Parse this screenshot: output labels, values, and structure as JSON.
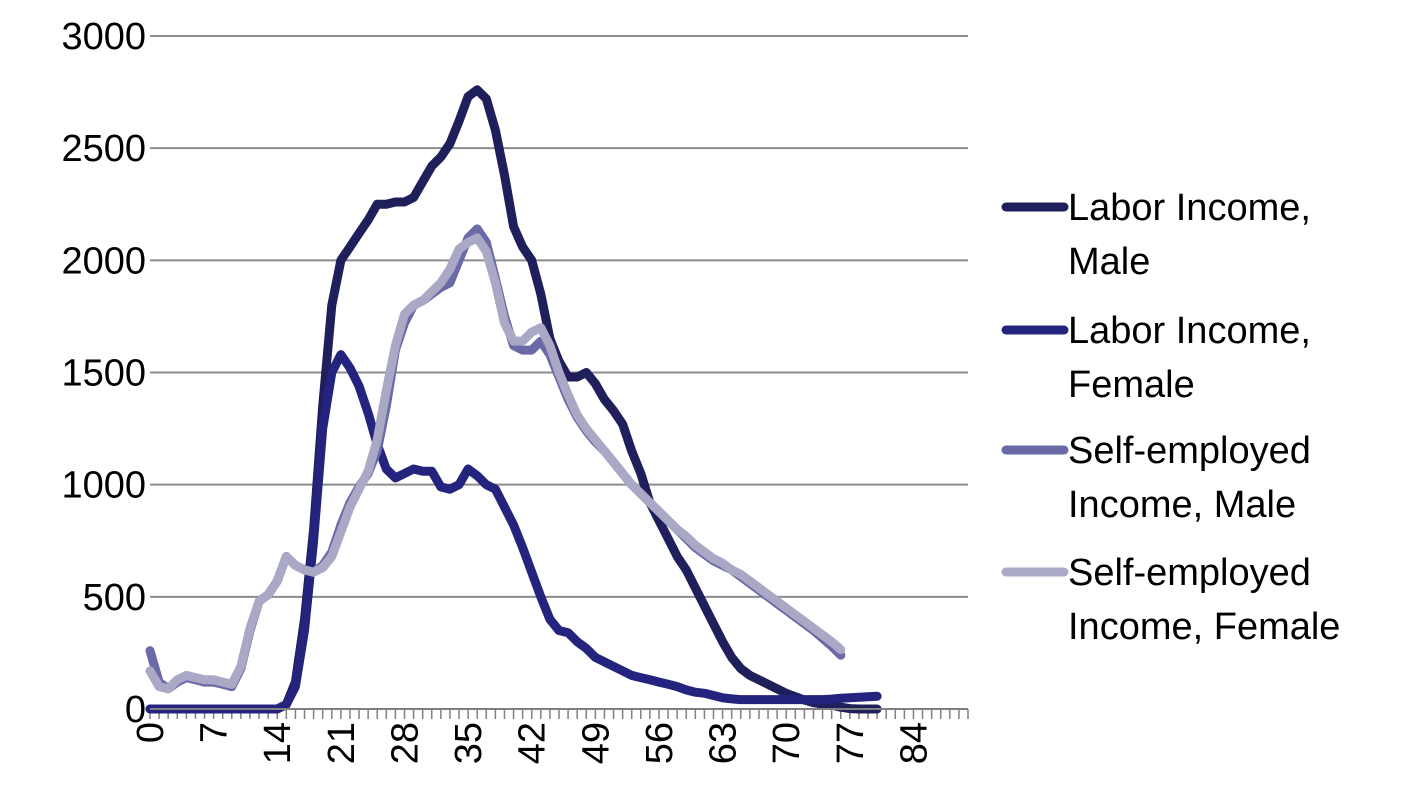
{
  "chart_data": {
    "type": "line",
    "title": "",
    "xlabel": "",
    "ylabel": "",
    "xlim": [
      0,
      90
    ],
    "ylim": [
      0,
      3000
    ],
    "y_ticks": [
      0,
      500,
      1000,
      1500,
      2000,
      2500,
      3000
    ],
    "x_ticks": [
      0,
      7,
      14,
      21,
      28,
      35,
      42,
      49,
      56,
      63,
      70,
      77,
      84
    ],
    "grid": "horizontal",
    "legend_position": "right",
    "series": [
      {
        "name": "Labor Income, Male",
        "color": "#1f1f5c",
        "points": [
          [
            0,
            0
          ],
          [
            13,
            0
          ],
          [
            14,
            0
          ],
          [
            15,
            20
          ],
          [
            16,
            120
          ],
          [
            17,
            400
          ],
          [
            18,
            800
          ],
          [
            19,
            1350
          ],
          [
            20,
            1800
          ],
          [
            21,
            2000
          ],
          [
            22,
            2060
          ],
          [
            23,
            2120
          ],
          [
            24,
            2180
          ],
          [
            25,
            2250
          ],
          [
            26,
            2250
          ],
          [
            27,
            2260
          ],
          [
            28,
            2260
          ],
          [
            29,
            2280
          ],
          [
            30,
            2350
          ],
          [
            31,
            2420
          ],
          [
            32,
            2460
          ],
          [
            33,
            2520
          ],
          [
            34,
            2620
          ],
          [
            35,
            2730
          ],
          [
            36,
            2760
          ],
          [
            37,
            2720
          ],
          [
            38,
            2580
          ],
          [
            39,
            2380
          ],
          [
            40,
            2150
          ],
          [
            41,
            2060
          ],
          [
            42,
            2000
          ],
          [
            43,
            1850
          ],
          [
            44,
            1650
          ],
          [
            45,
            1550
          ],
          [
            46,
            1480
          ],
          [
            47,
            1480
          ],
          [
            48,
            1500
          ],
          [
            49,
            1450
          ],
          [
            50,
            1380
          ],
          [
            51,
            1330
          ],
          [
            52,
            1270
          ],
          [
            53,
            1150
          ],
          [
            54,
            1050
          ],
          [
            55,
            920
          ],
          [
            56,
            840
          ],
          [
            57,
            760
          ],
          [
            58,
            680
          ],
          [
            59,
            620
          ],
          [
            60,
            540
          ],
          [
            61,
            460
          ],
          [
            62,
            380
          ],
          [
            63,
            300
          ],
          [
            64,
            230
          ],
          [
            65,
            180
          ],
          [
            66,
            150
          ],
          [
            67,
            130
          ],
          [
            68,
            110
          ],
          [
            69,
            90
          ],
          [
            70,
            70
          ],
          [
            71,
            55
          ],
          [
            72,
            40
          ],
          [
            73,
            28
          ],
          [
            74,
            22
          ],
          [
            75,
            18
          ],
          [
            76,
            8
          ],
          [
            77,
            2
          ],
          [
            78,
            0
          ],
          [
            79,
            0
          ],
          [
            80,
            0
          ]
        ]
      },
      {
        "name": "Labor Income, Female",
        "color": "#24247f",
        "points": [
          [
            0,
            0
          ],
          [
            13,
            0
          ],
          [
            14,
            0
          ],
          [
            15,
            20
          ],
          [
            16,
            100
          ],
          [
            17,
            350
          ],
          [
            18,
            750
          ],
          [
            19,
            1250
          ],
          [
            20,
            1500
          ],
          [
            21,
            1580
          ],
          [
            22,
            1520
          ],
          [
            23,
            1440
          ],
          [
            24,
            1320
          ],
          [
            25,
            1180
          ],
          [
            26,
            1070
          ],
          [
            27,
            1030
          ],
          [
            28,
            1050
          ],
          [
            29,
            1070
          ],
          [
            30,
            1060
          ],
          [
            31,
            1060
          ],
          [
            32,
            990
          ],
          [
            33,
            980
          ],
          [
            34,
            1000
          ],
          [
            35,
            1070
          ],
          [
            36,
            1040
          ],
          [
            37,
            1000
          ],
          [
            38,
            980
          ],
          [
            39,
            900
          ],
          [
            40,
            820
          ],
          [
            41,
            720
          ],
          [
            42,
            610
          ],
          [
            43,
            500
          ],
          [
            44,
            400
          ],
          [
            45,
            350
          ],
          [
            46,
            340
          ],
          [
            47,
            300
          ],
          [
            48,
            270
          ],
          [
            49,
            230
          ],
          [
            50,
            210
          ],
          [
            51,
            190
          ],
          [
            52,
            170
          ],
          [
            53,
            150
          ],
          [
            54,
            140
          ],
          [
            55,
            130
          ],
          [
            56,
            120
          ],
          [
            57,
            110
          ],
          [
            58,
            100
          ],
          [
            59,
            85
          ],
          [
            60,
            75
          ],
          [
            61,
            70
          ],
          [
            62,
            60
          ],
          [
            63,
            50
          ],
          [
            64,
            45
          ],
          [
            65,
            42
          ],
          [
            66,
            42
          ],
          [
            67,
            42
          ],
          [
            68,
            42
          ],
          [
            69,
            42
          ],
          [
            70,
            42
          ],
          [
            71,
            42
          ],
          [
            72,
            42
          ],
          [
            73,
            42
          ],
          [
            74,
            42
          ],
          [
            75,
            44
          ],
          [
            76,
            48
          ],
          [
            77,
            50
          ],
          [
            78,
            52
          ],
          [
            79,
            55
          ],
          [
            80,
            57
          ]
        ]
      },
      {
        "name": "Self-employed Income, Male",
        "color": "#6a6aa8",
        "points": [
          [
            0,
            260
          ],
          [
            1,
            120
          ],
          [
            2,
            90
          ],
          [
            3,
            120
          ],
          [
            4,
            140
          ],
          [
            5,
            130
          ],
          [
            6,
            120
          ],
          [
            7,
            120
          ],
          [
            8,
            110
          ],
          [
            9,
            100
          ],
          [
            10,
            180
          ],
          [
            11,
            350
          ],
          [
            12,
            480
          ],
          [
            13,
            510
          ],
          [
            14,
            570
          ],
          [
            15,
            680
          ],
          [
            16,
            640
          ],
          [
            17,
            620
          ],
          [
            18,
            610
          ],
          [
            19,
            640
          ],
          [
            20,
            700
          ],
          [
            21,
            820
          ],
          [
            22,
            920
          ],
          [
            23,
            990
          ],
          [
            24,
            1050
          ],
          [
            25,
            1150
          ],
          [
            26,
            1350
          ],
          [
            27,
            1600
          ],
          [
            28,
            1720
          ],
          [
            29,
            1800
          ],
          [
            30,
            1820
          ],
          [
            31,
            1850
          ],
          [
            32,
            1880
          ],
          [
            33,
            1900
          ],
          [
            34,
            2000
          ],
          [
            35,
            2100
          ],
          [
            36,
            2140
          ],
          [
            37,
            2080
          ],
          [
            38,
            1920
          ],
          [
            39,
            1750
          ],
          [
            40,
            1620
          ],
          [
            41,
            1600
          ],
          [
            42,
            1600
          ],
          [
            43,
            1640
          ],
          [
            44,
            1580
          ],
          [
            45,
            1480
          ],
          [
            46,
            1380
          ],
          [
            47,
            1300
          ],
          [
            48,
            1240
          ],
          [
            49,
            1190
          ],
          [
            50,
            1150
          ],
          [
            51,
            1100
          ],
          [
            52,
            1050
          ],
          [
            53,
            1000
          ],
          [
            54,
            960
          ],
          [
            55,
            920
          ],
          [
            56,
            880
          ],
          [
            57,
            840
          ],
          [
            58,
            800
          ],
          [
            59,
            760
          ],
          [
            60,
            720
          ],
          [
            61,
            690
          ],
          [
            62,
            660
          ],
          [
            63,
            640
          ],
          [
            64,
            620
          ],
          [
            65,
            590
          ],
          [
            66,
            560
          ],
          [
            67,
            530
          ],
          [
            68,
            500
          ],
          [
            69,
            470
          ],
          [
            70,
            440
          ],
          [
            71,
            410
          ],
          [
            72,
            380
          ],
          [
            73,
            350
          ],
          [
            74,
            315
          ],
          [
            75,
            280
          ],
          [
            76,
            240
          ]
        ]
      },
      {
        "name": "Self-employed Income, Female",
        "color": "#a9a9c6",
        "points": [
          [
            0,
            170
          ],
          [
            1,
            100
          ],
          [
            2,
            90
          ],
          [
            3,
            130
          ],
          [
            4,
            150
          ],
          [
            5,
            140
          ],
          [
            6,
            130
          ],
          [
            7,
            130
          ],
          [
            8,
            120
          ],
          [
            9,
            110
          ],
          [
            10,
            190
          ],
          [
            11,
            360
          ],
          [
            12,
            480
          ],
          [
            13,
            510
          ],
          [
            14,
            570
          ],
          [
            15,
            680
          ],
          [
            16,
            640
          ],
          [
            17,
            620
          ],
          [
            18,
            610
          ],
          [
            19,
            630
          ],
          [
            20,
            680
          ],
          [
            21,
            790
          ],
          [
            22,
            900
          ],
          [
            23,
            980
          ],
          [
            24,
            1060
          ],
          [
            25,
            1200
          ],
          [
            26,
            1420
          ],
          [
            27,
            1620
          ],
          [
            28,
            1760
          ],
          [
            29,
            1800
          ],
          [
            30,
            1820
          ],
          [
            31,
            1860
          ],
          [
            32,
            1900
          ],
          [
            33,
            1960
          ],
          [
            34,
            2050
          ],
          [
            35,
            2080
          ],
          [
            36,
            2100
          ],
          [
            37,
            2040
          ],
          [
            38,
            1900
          ],
          [
            39,
            1720
          ],
          [
            40,
            1640
          ],
          [
            41,
            1640
          ],
          [
            42,
            1680
          ],
          [
            43,
            1700
          ],
          [
            44,
            1620
          ],
          [
            45,
            1500
          ],
          [
            46,
            1400
          ],
          [
            47,
            1310
          ],
          [
            48,
            1250
          ],
          [
            49,
            1200
          ],
          [
            50,
            1150
          ],
          [
            51,
            1100
          ],
          [
            52,
            1050
          ],
          [
            53,
            1000
          ],
          [
            54,
            960
          ],
          [
            55,
            920
          ],
          [
            56,
            880
          ],
          [
            57,
            840
          ],
          [
            58,
            800
          ],
          [
            59,
            770
          ],
          [
            60,
            730
          ],
          [
            61,
            700
          ],
          [
            62,
            670
          ],
          [
            63,
            650
          ],
          [
            64,
            620
          ],
          [
            65,
            600
          ],
          [
            66,
            570
          ],
          [
            67,
            540
          ],
          [
            68,
            510
          ],
          [
            69,
            480
          ],
          [
            70,
            450
          ],
          [
            71,
            420
          ],
          [
            72,
            390
          ],
          [
            73,
            360
          ],
          [
            74,
            330
          ],
          [
            75,
            300
          ],
          [
            76,
            265
          ]
        ]
      }
    ]
  }
}
